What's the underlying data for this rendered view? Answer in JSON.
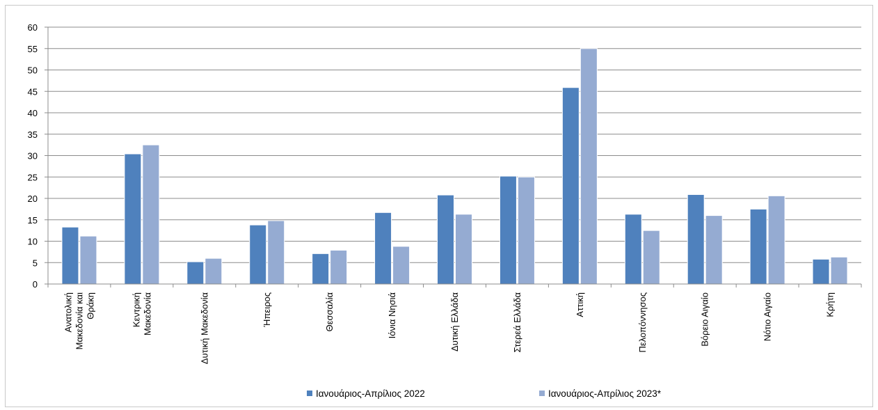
{
  "chart_data": {
    "type": "bar",
    "categories": [
      [
        "Ανατολική",
        "Μακεδονία και",
        "Θράκη"
      ],
      [
        "Κεντρική",
        "Μακεδονία"
      ],
      [
        "Δυτική Μακεδονία"
      ],
      [
        "Ήπειρος"
      ],
      [
        "Θεσσαλία"
      ],
      [
        "Ιόνια Νησιά"
      ],
      [
        "Δυτική Ελλάδα"
      ],
      [
        "Στερεά Ελλάδα"
      ],
      [
        "Αττική"
      ],
      [
        "Πελοπόννησος"
      ],
      [
        "Βόρειο Αιγαίο"
      ],
      [
        "Νότιο Αιγαίο"
      ],
      [
        "Κρήτη"
      ]
    ],
    "series": [
      {
        "name": "Ιανουάριος-Απρίλιος 2022",
        "color": "#4f81bd",
        "values": [
          13.3,
          30.4,
          5.2,
          13.8,
          7.1,
          16.7,
          20.8,
          25.2,
          45.9,
          16.3,
          20.9,
          17.5,
          5.8
        ]
      },
      {
        "name": "Ιανουάριος-Απρίλιος 2023*",
        "color": "#95abd2",
        "values": [
          11.2,
          32.5,
          6.0,
          14.8,
          7.9,
          8.8,
          16.3,
          25.0,
          55.0,
          12.5,
          16.0,
          20.6,
          6.3
        ]
      }
    ],
    "yticks": [
      "0",
      "5",
      "10",
      "15",
      "20",
      "25",
      "30",
      "35",
      "40",
      "45",
      "50",
      "55",
      "60"
    ],
    "ylim": [
      0,
      60
    ],
    "grid": true,
    "legend_position": "bottom"
  }
}
